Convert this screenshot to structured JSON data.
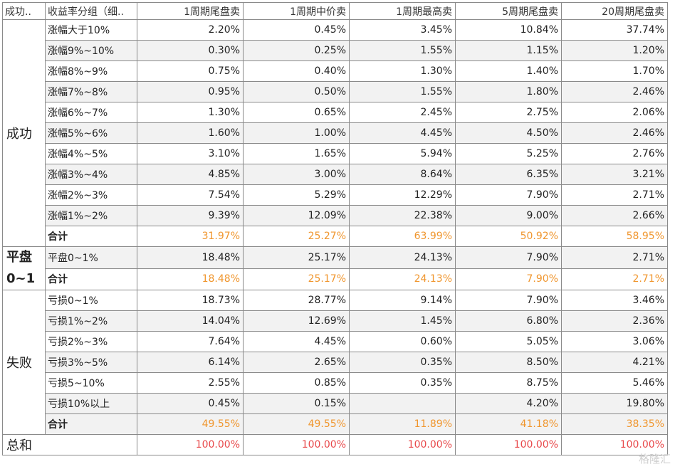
{
  "header": {
    "group_col": "成功..",
    "sub_col": "收益率分组（细..",
    "columns": [
      "1周期尾盘卖",
      "1周期中价卖",
      "1周期最高卖",
      "5周期尾盘卖",
      "20周期尾盘卖"
    ]
  },
  "groups": {
    "success": "成功",
    "flat": "平盘0~1",
    "fail": "失败",
    "total": "总和"
  },
  "success_rows": [
    {
      "label": "涨幅大于10%",
      "values": [
        "2.20%",
        "0.45%",
        "3.45%",
        "10.84%",
        "37.74%"
      ]
    },
    {
      "label": "涨幅9%~10%",
      "values": [
        "0.30%",
        "0.25%",
        "1.55%",
        "1.15%",
        "1.20%"
      ]
    },
    {
      "label": "涨幅8%~9%",
      "values": [
        "0.75%",
        "0.40%",
        "1.30%",
        "1.40%",
        "1.70%"
      ]
    },
    {
      "label": "涨幅7%~8%",
      "values": [
        "0.95%",
        "0.50%",
        "1.55%",
        "1.80%",
        "2.46%"
      ]
    },
    {
      "label": "涨幅6%~7%",
      "values": [
        "1.30%",
        "0.65%",
        "2.45%",
        "2.75%",
        "2.06%"
      ]
    },
    {
      "label": "涨幅5%~6%",
      "values": [
        "1.60%",
        "1.00%",
        "4.45%",
        "4.50%",
        "2.46%"
      ]
    },
    {
      "label": "涨幅4%~5%",
      "values": [
        "3.10%",
        "1.65%",
        "5.94%",
        "5.25%",
        "2.76%"
      ]
    },
    {
      "label": "涨幅3%~4%",
      "values": [
        "4.85%",
        "3.00%",
        "8.64%",
        "6.35%",
        "3.21%"
      ]
    },
    {
      "label": "涨幅2%~3%",
      "values": [
        "7.54%",
        "5.29%",
        "12.29%",
        "7.90%",
        "2.71%"
      ]
    },
    {
      "label": "涨幅1%~2%",
      "values": [
        "9.39%",
        "12.09%",
        "22.38%",
        "9.00%",
        "2.66%"
      ]
    }
  ],
  "success_sum": {
    "label": "合计",
    "values": [
      "31.97%",
      "25.27%",
      "63.99%",
      "50.92%",
      "58.95%"
    ]
  },
  "flat_rows": [
    {
      "label": "平盘0~1%",
      "values": [
        "18.48%",
        "25.17%",
        "24.13%",
        "7.90%",
        "2.71%"
      ]
    }
  ],
  "flat_sum": {
    "label": "合计",
    "values": [
      "18.48%",
      "25.17%",
      "24.13%",
      "7.90%",
      "2.71%"
    ]
  },
  "fail_rows": [
    {
      "label": "亏损0~1%",
      "values": [
        "18.73%",
        "28.77%",
        "9.14%",
        "7.90%",
        "3.46%"
      ]
    },
    {
      "label": "亏损1%~2%",
      "values": [
        "14.04%",
        "12.69%",
        "1.45%",
        "6.80%",
        "2.36%"
      ]
    },
    {
      "label": "亏损2%~3%",
      "values": [
        "7.64%",
        "4.45%",
        "0.60%",
        "5.05%",
        "3.06%"
      ]
    },
    {
      "label": "亏损3%~5%",
      "values": [
        "6.14%",
        "2.65%",
        "0.35%",
        "8.50%",
        "4.21%"
      ]
    },
    {
      "label": "亏损5~10%",
      "values": [
        "2.55%",
        "0.85%",
        "0.35%",
        "8.75%",
        "5.46%"
      ]
    },
    {
      "label": "亏损10%以上",
      "values": [
        "0.45%",
        "0.15%",
        "",
        "4.20%",
        "19.80%"
      ]
    }
  ],
  "fail_sum": {
    "label": "合计",
    "values": [
      "49.55%",
      "49.55%",
      "11.89%",
      "41.18%",
      "38.35%"
    ]
  },
  "total_row": {
    "values": [
      "100.00%",
      "100.00%",
      "100.00%",
      "100.00%",
      "100.00%"
    ]
  },
  "watermark": "格隆汇",
  "colors": {
    "sum_text": "#f0962e",
    "total_text": "#e8484a",
    "row_shade": "#f2f2f2"
  }
}
